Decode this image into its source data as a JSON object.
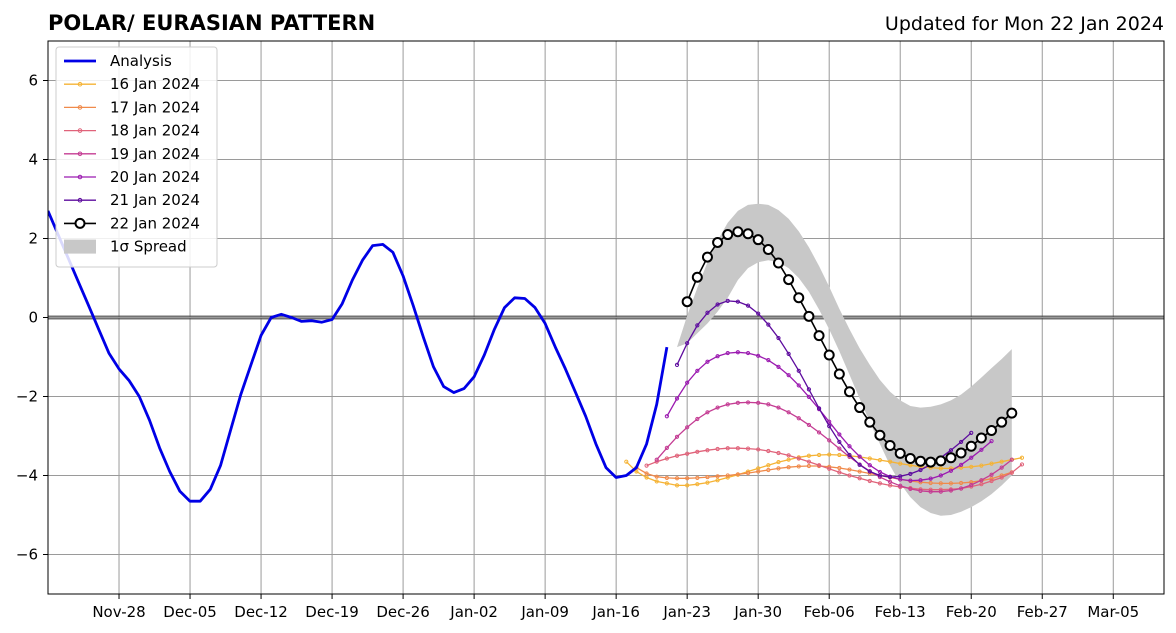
{
  "chart_data": {
    "type": "line",
    "title": "POLAR/ EURASIAN  PATTERN",
    "subtitle": "Updated for Mon 22 Jan 2024",
    "xlabel": "",
    "ylabel": "",
    "x_axis": {
      "type": "date",
      "start": "2023-11-21",
      "end": "2024-03-10",
      "major_step_days": 7
    },
    "x_ticks": [
      {
        "date": "2023-11-28",
        "label": "Nov-28"
      },
      {
        "date": "2023-12-05",
        "label": "Dec-05"
      },
      {
        "date": "2023-12-12",
        "label": "Dec-12"
      },
      {
        "date": "2023-12-19",
        "label": "Dec-19"
      },
      {
        "date": "2023-12-26",
        "label": "Dec-26"
      },
      {
        "date": "2024-01-02",
        "label": "Jan-02"
      },
      {
        "date": "2024-01-09",
        "label": "Jan-09"
      },
      {
        "date": "2024-01-16",
        "label": "Jan-16"
      },
      {
        "date": "2024-01-23",
        "label": "Jan-23"
      },
      {
        "date": "2024-01-30",
        "label": "Jan-30"
      },
      {
        "date": "2024-02-06",
        "label": "Feb-06"
      },
      {
        "date": "2024-02-13",
        "label": "Feb-13"
      },
      {
        "date": "2024-02-20",
        "label": "Feb-20"
      },
      {
        "date": "2024-02-27",
        "label": "Feb-27"
      },
      {
        "date": "2024-03-05",
        "label": "Mar-05"
      }
    ],
    "y_ticks": [
      {
        "value": -6,
        "label": "−6"
      },
      {
        "value": -4,
        "label": "−4"
      },
      {
        "value": -2,
        "label": "−2"
      },
      {
        "value": 0,
        "label": "0"
      },
      {
        "value": 2,
        "label": "2"
      },
      {
        "value": 4,
        "label": "4"
      },
      {
        "value": 6,
        "label": "6"
      }
    ],
    "ylim": [
      -7,
      7
    ],
    "grid": true,
    "zero_line": true,
    "legend_position": "top-left",
    "analysis": {
      "name": "Analysis",
      "color": "#0000e6",
      "points": [
        [
          "2023-11-21",
          2.7
        ],
        [
          "2023-11-22",
          2.1
        ],
        [
          "2023-11-23",
          1.5
        ],
        [
          "2023-11-24",
          0.9
        ],
        [
          "2023-11-25",
          0.3
        ],
        [
          "2023-11-26",
          -0.3
        ],
        [
          "2023-11-27",
          -0.9
        ],
        [
          "2023-11-28",
          -1.3
        ],
        [
          "2023-11-29",
          -1.6
        ],
        [
          "2023-11-30",
          -2.0
        ],
        [
          "2023-12-01",
          -2.6
        ],
        [
          "2023-12-02",
          -3.3
        ],
        [
          "2023-12-03",
          -3.9
        ],
        [
          "2023-12-04",
          -4.4
        ],
        [
          "2023-12-05",
          -4.65
        ],
        [
          "2023-12-06",
          -4.65
        ],
        [
          "2023-12-07",
          -4.35
        ],
        [
          "2023-12-08",
          -3.75
        ],
        [
          "2023-12-09",
          -2.85
        ],
        [
          "2023-12-10",
          -1.95
        ],
        [
          "2023-12-11",
          -1.2
        ],
        [
          "2023-12-12",
          -0.45
        ],
        [
          "2023-12-13",
          0.0
        ],
        [
          "2023-12-14",
          0.08
        ],
        [
          "2023-12-15",
          0.0
        ],
        [
          "2023-12-16",
          -0.1
        ],
        [
          "2023-12-17",
          -0.08
        ],
        [
          "2023-12-18",
          -0.12
        ],
        [
          "2023-12-19",
          -0.05
        ],
        [
          "2023-12-20",
          0.35
        ],
        [
          "2023-12-21",
          0.95
        ],
        [
          "2023-12-22",
          1.45
        ],
        [
          "2023-12-23",
          1.82
        ],
        [
          "2023-12-24",
          1.85
        ],
        [
          "2023-12-25",
          1.65
        ],
        [
          "2023-12-26",
          1.05
        ],
        [
          "2023-12-27",
          0.3
        ],
        [
          "2023-12-28",
          -0.5
        ],
        [
          "2023-12-29",
          -1.25
        ],
        [
          "2023-12-30",
          -1.75
        ],
        [
          "2023-12-31",
          -1.9
        ],
        [
          "2024-01-01",
          -1.8
        ],
        [
          "2024-01-02",
          -1.5
        ],
        [
          "2024-01-03",
          -0.95
        ],
        [
          "2024-01-04",
          -0.3
        ],
        [
          "2024-01-05",
          0.25
        ],
        [
          "2024-01-06",
          0.5
        ],
        [
          "2024-01-07",
          0.48
        ],
        [
          "2024-01-08",
          0.25
        ],
        [
          "2024-01-09",
          -0.15
        ],
        [
          "2024-01-10",
          -0.75
        ],
        [
          "2024-01-11",
          -1.3
        ],
        [
          "2024-01-12",
          -1.9
        ],
        [
          "2024-01-13",
          -2.5
        ],
        [
          "2024-01-14",
          -3.2
        ],
        [
          "2024-01-15",
          -3.8
        ],
        [
          "2024-01-16",
          -4.05
        ],
        [
          "2024-01-17",
          -4.0
        ],
        [
          "2024-01-18",
          -3.8
        ],
        [
          "2024-01-19",
          -3.2
        ],
        [
          "2024-01-20",
          -2.2
        ],
        [
          "2024-01-21",
          -0.75
        ]
      ]
    },
    "forecasts": [
      {
        "name": "16 Jan 2024",
        "color": "#f5b335",
        "start": "2024-01-17",
        "values": [
          -3.65,
          -3.9,
          -4.05,
          -4.15,
          -4.2,
          -4.25,
          -4.25,
          -4.22,
          -4.18,
          -4.12,
          -4.05,
          -3.98,
          -3.9,
          -3.82,
          -3.74,
          -3.66,
          -3.6,
          -3.54,
          -3.5,
          -3.48,
          -3.47,
          -3.48,
          -3.5,
          -3.53,
          -3.57,
          -3.61,
          -3.65,
          -3.7,
          -3.74,
          -3.78,
          -3.8,
          -3.82,
          -3.82,
          -3.8,
          -3.78,
          -3.75,
          -3.7,
          -3.65,
          -3.6,
          -3.55
        ]
      },
      {
        "name": "17 Jan 2024",
        "color": "#f08a4b",
        "start": "2024-01-18",
        "values": [
          -3.8,
          -3.95,
          -4.03,
          -4.06,
          -4.07,
          -4.07,
          -4.06,
          -4.04,
          -4.02,
          -4.0,
          -3.97,
          -3.94,
          -3.9,
          -3.86,
          -3.82,
          -3.79,
          -3.77,
          -3.76,
          -3.76,
          -3.78,
          -3.81,
          -3.85,
          -3.9,
          -3.95,
          -4.0,
          -4.05,
          -4.1,
          -4.14,
          -4.17,
          -4.19,
          -4.2,
          -4.2,
          -4.19,
          -4.17,
          -4.13,
          -4.08,
          -4.0,
          -3.92
        ]
      },
      {
        "name": "18 Jan 2024",
        "color": "#e0637a",
        "start": "2024-01-19",
        "values": [
          -3.75,
          -3.65,
          -3.57,
          -3.5,
          -3.45,
          -3.4,
          -3.36,
          -3.33,
          -3.31,
          -3.31,
          -3.32,
          -3.34,
          -3.38,
          -3.43,
          -3.49,
          -3.57,
          -3.65,
          -3.74,
          -3.83,
          -3.92,
          -4.0,
          -4.07,
          -4.14,
          -4.2,
          -4.25,
          -4.29,
          -4.32,
          -4.35,
          -4.36,
          -4.36,
          -4.35,
          -4.33,
          -4.28,
          -4.22,
          -4.14,
          -4.05,
          -3.93,
          -3.72
        ]
      },
      {
        "name": "19 Jan 2024",
        "color": "#c43c93",
        "start": "2024-01-20",
        "values": [
          -3.6,
          -3.3,
          -3.02,
          -2.78,
          -2.57,
          -2.4,
          -2.28,
          -2.2,
          -2.16,
          -2.15,
          -2.16,
          -2.2,
          -2.28,
          -2.4,
          -2.55,
          -2.72,
          -2.91,
          -3.11,
          -3.32,
          -3.53,
          -3.72,
          -3.89,
          -4.04,
          -4.16,
          -4.26,
          -4.34,
          -4.39,
          -4.41,
          -4.41,
          -4.38,
          -4.33,
          -4.24,
          -4.12,
          -3.98,
          -3.8,
          -3.6
        ]
      },
      {
        "name": "20 Jan 2024",
        "color": "#9b1ab0",
        "start": "2024-01-21",
        "values": [
          -2.5,
          -2.05,
          -1.65,
          -1.35,
          -1.12,
          -0.98,
          -0.9,
          -0.88,
          -0.9,
          -0.97,
          -1.08,
          -1.25,
          -1.46,
          -1.72,
          -2.01,
          -2.32,
          -2.64,
          -2.96,
          -3.26,
          -3.52,
          -3.74,
          -3.91,
          -4.03,
          -4.1,
          -4.13,
          -4.12,
          -4.08,
          -4.0,
          -3.88,
          -3.73,
          -3.55,
          -3.35,
          -3.13
        ]
      },
      {
        "name": "21 Jan 2024",
        "color": "#5d0b9e",
        "start": "2024-01-22",
        "values": [
          -1.2,
          -0.65,
          -0.2,
          0.12,
          0.33,
          0.42,
          0.4,
          0.3,
          0.1,
          -0.18,
          -0.52,
          -0.92,
          -1.35,
          -1.82,
          -2.3,
          -2.75,
          -3.15,
          -3.48,
          -3.73,
          -3.9,
          -4.0,
          -4.04,
          -4.02,
          -3.96,
          -3.86,
          -3.72,
          -3.55,
          -3.36,
          -3.15,
          -2.92
        ]
      },
      {
        "name": "22 Jan 2024",
        "color": "#000000",
        "start": "2024-01-23",
        "markers": "open-circle",
        "values": [
          0.4,
          1.02,
          1.53,
          1.9,
          2.1,
          2.17,
          2.12,
          1.97,
          1.72,
          1.38,
          0.96,
          0.5,
          0.03,
          -0.46,
          -0.95,
          -1.43,
          -1.88,
          -2.28,
          -2.65,
          -2.98,
          -3.24,
          -3.44,
          -3.57,
          -3.64,
          -3.66,
          -3.63,
          -3.55,
          -3.43,
          -3.26,
          -3.05,
          -2.86,
          -2.65,
          -2.42
        ]
      }
    ],
    "spread": {
      "name": "1σ Spread",
      "color": "#c8c8c8",
      "start": "2024-01-22",
      "upper": [
        -0.75,
        0.05,
        0.75,
        1.4,
        1.95,
        2.4,
        2.7,
        2.85,
        2.88,
        2.85,
        2.72,
        2.5,
        2.18,
        1.78,
        1.3,
        0.78,
        0.22,
        -0.3,
        -0.78,
        -1.2,
        -1.58,
        -1.88,
        -2.1,
        -2.24,
        -2.28,
        -2.26,
        -2.2,
        -2.1,
        -1.95,
        -1.75,
        -1.52,
        -1.28,
        -1.05,
        -0.8
      ],
      "lower": [
        -0.75,
        -0.65,
        -0.4,
        -0.15,
        0.15,
        0.5,
        0.95,
        1.25,
        1.4,
        1.45,
        1.4,
        1.25,
        1.0,
        0.65,
        0.2,
        -0.3,
        -0.85,
        -1.45,
        -2.05,
        -2.65,
        -3.2,
        -3.75,
        -4.2,
        -4.55,
        -4.8,
        -4.95,
        -5.02,
        -5.0,
        -4.92,
        -4.8,
        -4.65,
        -4.47,
        -4.25,
        -4.0
      ]
    }
  }
}
